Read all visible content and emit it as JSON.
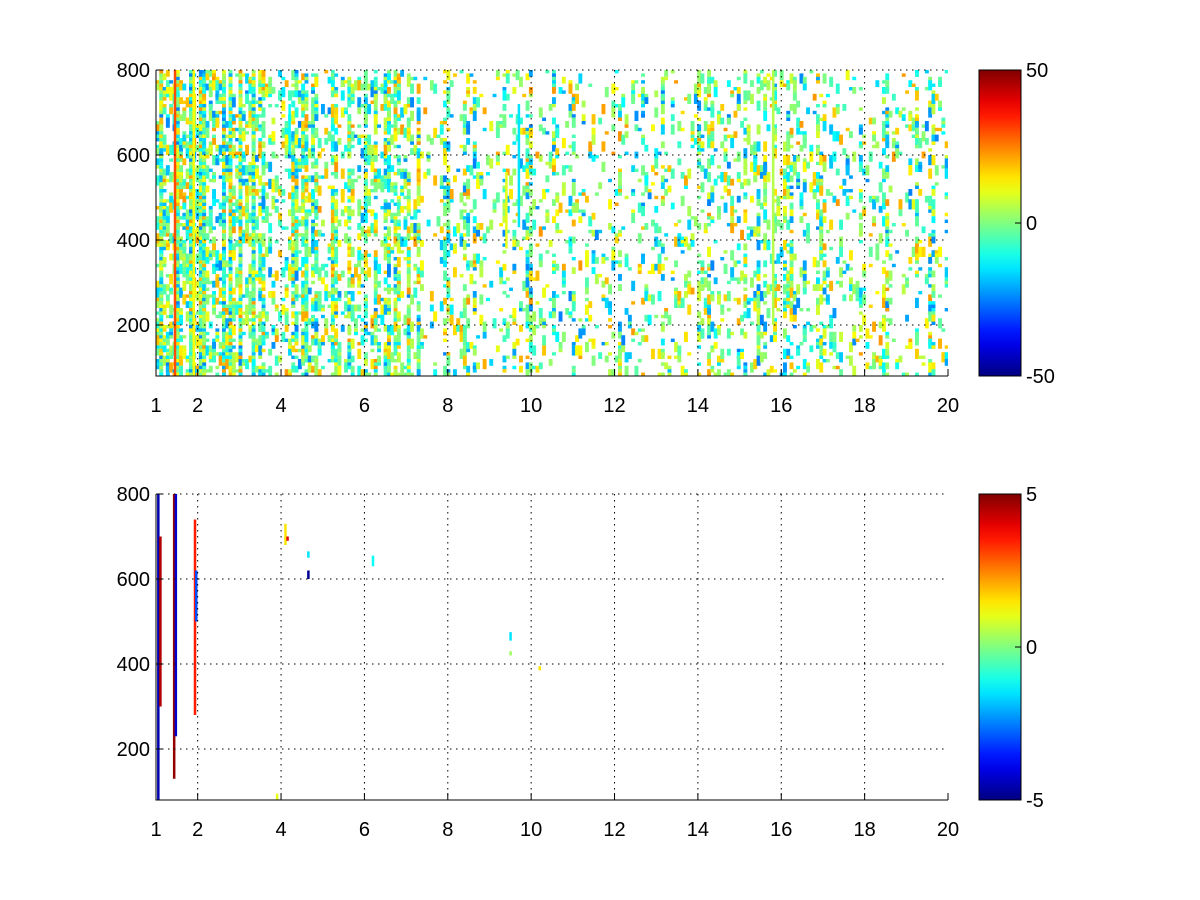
{
  "chart_data": [
    {
      "type": "heatmap",
      "title": "",
      "xlabel": "",
      "ylabel": "",
      "xlim": [
        1,
        20
      ],
      "ylim": [
        80,
        800
      ],
      "xticks": [
        1,
        2,
        4,
        6,
        8,
        10,
        12,
        14,
        16,
        18,
        20
      ],
      "xtick_labels": [
        "1",
        "2",
        "4",
        "6",
        "8",
        "10",
        "12",
        "14",
        "16",
        "18",
        "20"
      ],
      "yticks": [
        200,
        400,
        600,
        800
      ],
      "ytick_labels": [
        "200",
        "400",
        "600",
        "800"
      ],
      "grid": true,
      "colormap": "jet",
      "clim": [
        -50,
        50
      ],
      "colorbar_ticks": [
        -50,
        0,
        50
      ],
      "colorbar_labels": [
        "-50",
        "0",
        "50"
      ],
      "colorbar_position": "right",
      "description_of_cells": "sparse speckled cells over the whole grid; most values near 0 (cyan-green-yellow), with orange-red vertical streaks near x=1.5",
      "cells": [
        {
          "x": 1.45,
          "y0": 80,
          "y1": 800,
          "value": 30
        },
        {
          "x": 1.9,
          "y0": 80,
          "y1": 800,
          "value": 12
        },
        {
          "x": 9.4,
          "y0": 380,
          "y1": 560,
          "value": 10
        },
        {
          "x": 9.7,
          "y0": 430,
          "y1": 720,
          "value": -15
        },
        {
          "x": 4.2,
          "y0": 600,
          "y1": 720,
          "value": -12
        },
        {
          "x": 15.8,
          "y0": 200,
          "y1": 800,
          "value": 5
        }
      ],
      "speckle_seed": 7,
      "speckle_density": 0.18
    },
    {
      "type": "heatmap",
      "title": "",
      "xlabel": "",
      "ylabel": "",
      "xlim": [
        1,
        20
      ],
      "ylim": [
        80,
        800
      ],
      "xticks": [
        1,
        2,
        4,
        6,
        8,
        10,
        12,
        14,
        16,
        18,
        20
      ],
      "xtick_labels": [
        "1",
        "2",
        "4",
        "6",
        "8",
        "10",
        "12",
        "14",
        "16",
        "18",
        "20"
      ],
      "yticks": [
        200,
        400,
        600,
        800
      ],
      "ytick_labels": [
        "200",
        "400",
        "600",
        "800"
      ],
      "grid": true,
      "colormap": "jet",
      "clim": [
        -5,
        5
      ],
      "colorbar_ticks": [
        -5,
        0,
        5
      ],
      "colorbar_labels": [
        "-5",
        "0",
        "5"
      ],
      "colorbar_position": "right",
      "cells": [
        {
          "x": 1.05,
          "y0": 80,
          "y1": 800,
          "value": -4.5
        },
        {
          "x": 1.1,
          "y0": 300,
          "y1": 700,
          "value": 4.5
        },
        {
          "x": 1.43,
          "y0": 130,
          "y1": 800,
          "value": 4.8
        },
        {
          "x": 1.47,
          "y0": 230,
          "y1": 800,
          "value": -4.2
        },
        {
          "x": 1.93,
          "y0": 280,
          "y1": 740,
          "value": 3.5
        },
        {
          "x": 1.96,
          "y0": 500,
          "y1": 620,
          "value": -3.0
        },
        {
          "x": 4.1,
          "y0": 680,
          "y1": 730,
          "value": 1.5
        },
        {
          "x": 4.15,
          "y0": 690,
          "y1": 700,
          "value": 4.0
        },
        {
          "x": 4.65,
          "y0": 600,
          "y1": 620,
          "value": -4.8
        },
        {
          "x": 4.65,
          "y0": 650,
          "y1": 665,
          "value": -1.5
        },
        {
          "x": 6.2,
          "y0": 630,
          "y1": 655,
          "value": -1.2
        },
        {
          "x": 9.5,
          "y0": 455,
          "y1": 475,
          "value": -1.5
        },
        {
          "x": 9.5,
          "y0": 420,
          "y1": 430,
          "value": 0.3
        },
        {
          "x": 10.2,
          "y0": 385,
          "y1": 395,
          "value": 1.5
        },
        {
          "x": 3.9,
          "y0": 80,
          "y1": 95,
          "value": 1.0
        }
      ],
      "speckle_seed": 0,
      "speckle_density": 0
    }
  ]
}
